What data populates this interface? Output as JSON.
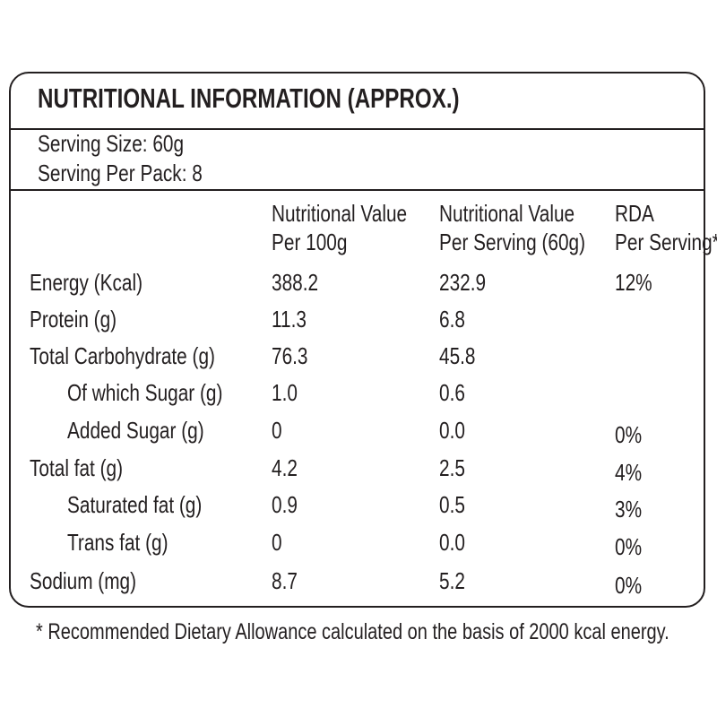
{
  "title": "NUTRITIONAL INFORMATION (APPROX.)",
  "serving": [
    "Serving Size: 60g",
    "Serving Per Pack: 8"
  ],
  "columns": [
    [
      "Nutritional Value",
      "Per 100g"
    ],
    [
      "Nutritional Value",
      "Per Serving (60g)"
    ],
    [
      "RDA",
      "Per Serving*"
    ]
  ],
  "rows": [
    [
      "Energy (Kcal)",
      "388.2",
      "232.9",
      "12%"
    ],
    [
      "Protein (g)",
      "11.3",
      "6.8",
      null
    ],
    [
      "Total Carbohydrate (g)",
      "76.3",
      "45.8",
      null
    ],
    [
      "Of which Sugar (g)",
      "1.0",
      "0.6",
      null
    ],
    [
      "Added Sugar (g)",
      "0",
      "0.0",
      "0%"
    ],
    [
      "Total fat (g)",
      "4.2",
      "2.5",
      "4%"
    ],
    [
      "Saturated fat (g)",
      "0.9",
      "0.5",
      "3%"
    ],
    [
      "Trans fat (g)",
      "0",
      "0.0",
      "0%"
    ],
    [
      "Sodium (mg)",
      "8.7",
      "5.2",
      "0%"
    ]
  ],
  "footnote": "* Recommended Dietary Allowance calculated on the basis of 2000 kcal energy."
}
